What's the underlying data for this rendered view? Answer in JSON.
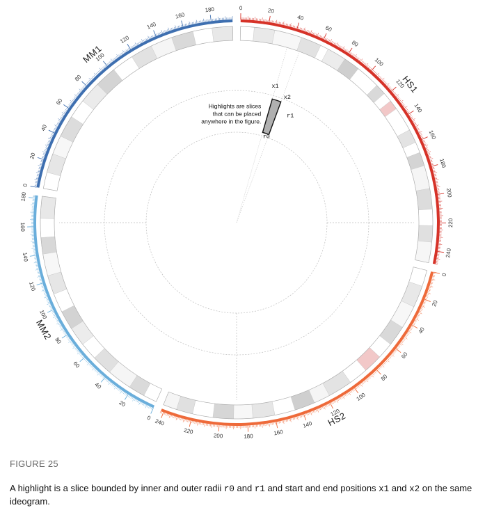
{
  "ideograms": [
    {
      "name": "HS1",
      "color": "#d63228",
      "length": 249,
      "major": 20,
      "bands": [
        [
          0,
          10,
          "#ffffff"
        ],
        [
          10,
          25,
          "#e9e9e9"
        ],
        [
          25,
          45,
          "#f7f7f7"
        ],
        [
          45,
          60,
          "#e2e2e2"
        ],
        [
          60,
          66,
          "#ffffff"
        ],
        [
          66,
          80,
          "#ececec"
        ],
        [
          80,
          92,
          "#cfcfcf"
        ],
        [
          92,
          110,
          "#ffffff"
        ],
        [
          110,
          118,
          "#d9d9d9"
        ],
        [
          118,
          125,
          "#ffffff"
        ],
        [
          125,
          132,
          "#f2c8c8"
        ],
        [
          132,
          150,
          "#ffffff"
        ],
        [
          150,
          160,
          "#e3e3e3"
        ],
        [
          160,
          168,
          "#ffffff"
        ],
        [
          168,
          178,
          "#d4d4d4"
        ],
        [
          178,
          195,
          "#f5f5f5"
        ],
        [
          195,
          210,
          "#dcdcdc"
        ],
        [
          210,
          222,
          "#ffffff"
        ],
        [
          222,
          234,
          "#e0e0e0"
        ],
        [
          234,
          249,
          "#f6f6f6"
        ]
      ]
    },
    {
      "name": "HS2",
      "color": "#ee6a3a",
      "length": 242,
      "major": 20,
      "bands": [
        [
          0,
          12,
          "#ffffff"
        ],
        [
          12,
          28,
          "#e8e8e8"
        ],
        [
          28,
          45,
          "#f7f7f7"
        ],
        [
          45,
          60,
          "#d9d9d9"
        ],
        [
          60,
          72,
          "#ffffff"
        ],
        [
          72,
          86,
          "#f2c8c8"
        ],
        [
          86,
          100,
          "#ffffff"
        ],
        [
          100,
          118,
          "#e3e3e3"
        ],
        [
          118,
          130,
          "#f5f5f5"
        ],
        [
          130,
          145,
          "#cfcfcf"
        ],
        [
          145,
          160,
          "#ffffff"
        ],
        [
          160,
          176,
          "#e6e6e6"
        ],
        [
          176,
          190,
          "#f7f7f7"
        ],
        [
          190,
          205,
          "#d6d6d6"
        ],
        [
          205,
          220,
          "#ffffff"
        ],
        [
          220,
          232,
          "#e0e0e0"
        ],
        [
          232,
          242,
          "#f5f5f5"
        ]
      ]
    },
    {
      "name": "MM2",
      "color": "#6aaedb",
      "length": 182,
      "major": 20,
      "bands": [
        [
          0,
          10,
          "#ffffff"
        ],
        [
          10,
          22,
          "#dadada"
        ],
        [
          22,
          40,
          "#f5f5f5"
        ],
        [
          40,
          55,
          "#e0e0e0"
        ],
        [
          55,
          68,
          "#ffffff"
        ],
        [
          68,
          82,
          "#ececec"
        ],
        [
          82,
          96,
          "#d3d3d3"
        ],
        [
          96,
          110,
          "#ffffff"
        ],
        [
          110,
          124,
          "#e6e6e6"
        ],
        [
          124,
          140,
          "#f7f7f7"
        ],
        [
          140,
          152,
          "#d8d8d8"
        ],
        [
          152,
          166,
          "#ffffff"
        ],
        [
          166,
          182,
          "#e8e8e8"
        ]
      ]
    },
    {
      "name": "MM1",
      "color": "#3e6fb0",
      "length": 195,
      "major": 20,
      "bands": [
        [
          0,
          12,
          "#ffffff"
        ],
        [
          12,
          26,
          "#e6e6e6"
        ],
        [
          26,
          40,
          "#f7f7f7"
        ],
        [
          40,
          56,
          "#dcdcdc"
        ],
        [
          56,
          70,
          "#ffffff"
        ],
        [
          70,
          86,
          "#ebebeb"
        ],
        [
          86,
          102,
          "#d4d4d4"
        ],
        [
          102,
          118,
          "#ffffff"
        ],
        [
          118,
          134,
          "#e2e2e2"
        ],
        [
          134,
          150,
          "#f5f5f5"
        ],
        [
          150,
          166,
          "#d9d9d9"
        ],
        [
          166,
          180,
          "#ffffff"
        ],
        [
          180,
          195,
          "#e8e8e8"
        ]
      ]
    }
  ],
  "highlight": {
    "chromosome": "HS1",
    "start": 37,
    "end": 47,
    "color": "#b0b0b0",
    "text_lines": [
      "Highlights are slices",
      "that can be placed",
      "anywhere in the figure."
    ]
  },
  "annotations": {
    "x1": "x1",
    "x2": "x2",
    "r0": "r0",
    "r1": "r1"
  },
  "figure_label": "FIGURE 25",
  "caption": {
    "part1": "A highlight is a slice bounded by inner and outer radii ",
    "r0": "r0",
    "part2": " and ",
    "r1": "r1",
    "part3": " and start and end positions ",
    "x1": "x1",
    "part4": " and ",
    "x2": "x2",
    "part5": " on the same ideogram."
  }
}
